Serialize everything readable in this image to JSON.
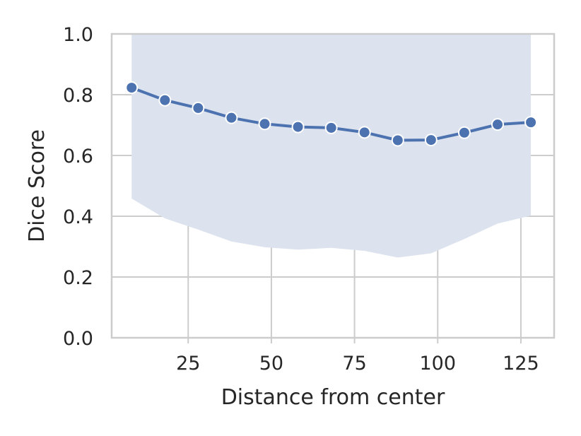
{
  "chart_data": {
    "type": "line",
    "xlabel": "Distance from center",
    "ylabel": "Dice Score",
    "xlim": [
      2,
      135
    ],
    "ylim": [
      0,
      1.0
    ],
    "x_ticks": [
      25,
      50,
      75,
      100,
      125
    ],
    "x_tick_labels": [
      "25",
      "50",
      "75",
      "100",
      "125"
    ],
    "y_ticks": [
      0,
      0.2,
      0.4,
      0.6,
      0.8,
      1.0
    ],
    "y_tick_labels": [
      "0.0",
      "0.2",
      "0.4",
      "0.6",
      "0.8",
      "1.0"
    ],
    "grid": true,
    "series": [
      {
        "x": [
          8,
          18,
          28,
          38,
          48,
          58,
          68,
          78,
          88,
          98,
          108,
          118,
          128
        ],
        "y": [
          0.823,
          0.782,
          0.756,
          0.724,
          0.704,
          0.694,
          0.691,
          0.676,
          0.65,
          0.651,
          0.675,
          0.702,
          0.709
        ],
        "band_lower": [
          0.458,
          0.393,
          0.356,
          0.317,
          0.298,
          0.29,
          0.296,
          0.286,
          0.264,
          0.278,
          0.325,
          0.376,
          0.402
        ],
        "band_upper": [
          1.0,
          1.0,
          1.0,
          1.0,
          1.0,
          1.0,
          1.0,
          1.0,
          1.0,
          1.0,
          1.0,
          1.0,
          1.0
        ],
        "color": "#4c72b0",
        "band_color": "#dce3ee"
      }
    ]
  }
}
